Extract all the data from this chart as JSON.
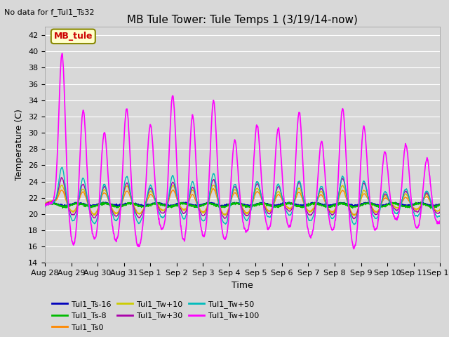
{
  "title": "MB Tule Tower: Tule Temps 1 (3/19/14-now)",
  "top_note": "No data for f_Tul1_Ts32",
  "ylabel": "Temperature (C)",
  "xlabel": "Time",
  "ylim": [
    14,
    43
  ],
  "yticks": [
    14,
    16,
    18,
    20,
    22,
    24,
    26,
    28,
    30,
    32,
    34,
    36,
    38,
    40,
    42
  ],
  "x_tick_labels": [
    "Aug 28",
    "Aug 29",
    "Aug 30",
    "Aug 31",
    "Sep 1",
    "Sep 2",
    "Sep 3",
    "Sep 4",
    "Sep 5",
    "Sep 6",
    "Sep 7",
    "Sep 8",
    "Sep 9",
    "Sep 10",
    "Sep 11",
    "Sep 12"
  ],
  "legend_entries": [
    {
      "label": "Tul1_Ts-16",
      "color": "#0000bb"
    },
    {
      "label": "Tul1_Ts-8",
      "color": "#00bb00"
    },
    {
      "label": "Tul1_Ts0",
      "color": "#ff8800"
    },
    {
      "label": "Tul1_Tw+10",
      "color": "#cccc00"
    },
    {
      "label": "Tul1_Tw+30",
      "color": "#aa00aa"
    },
    {
      "label": "Tul1_Tw+50",
      "color": "#00bbbb"
    },
    {
      "label": "Tul1_Tw+100",
      "color": "#ff00ff"
    }
  ],
  "annotation_box": {
    "text": "MB_tule",
    "text_color": "#cc0000",
    "box_facecolor": "#ffffcc",
    "box_edgecolor": "#888800"
  },
  "fig_facecolor": "#d8d8d8",
  "plot_facecolor": "#d8d8d8",
  "grid_color": "#ffffff",
  "title_fontsize": 11,
  "axis_fontsize": 9,
  "tick_fontsize": 8
}
